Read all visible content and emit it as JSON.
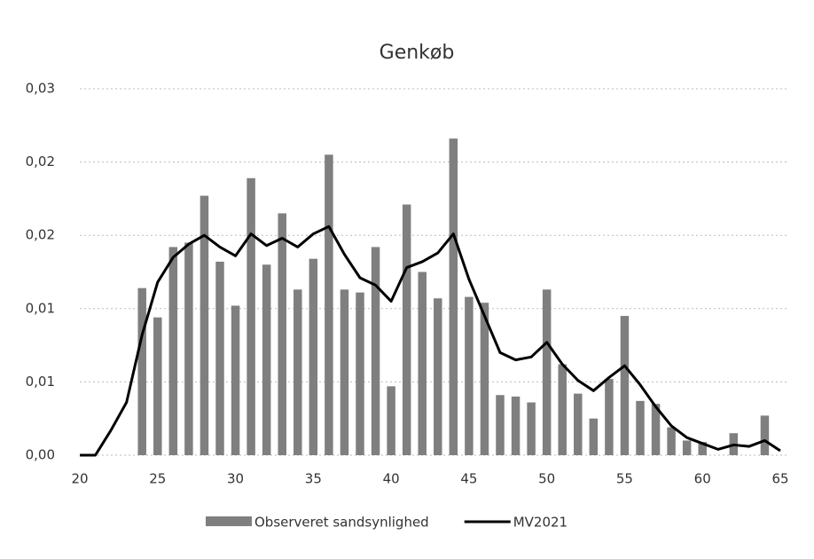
{
  "chart_data": {
    "type": "bar",
    "title": "Genkøb",
    "x": [
      20,
      21,
      22,
      23,
      24,
      25,
      26,
      27,
      28,
      29,
      30,
      31,
      32,
      33,
      34,
      35,
      36,
      37,
      38,
      39,
      40,
      41,
      42,
      43,
      44,
      45,
      46,
      47,
      48,
      49,
      50,
      51,
      52,
      53,
      54,
      55,
      56,
      57,
      58,
      59,
      60,
      61,
      62,
      63,
      64,
      65
    ],
    "series": [
      {
        "name": "Observeret sandsynlighed",
        "type": "bar",
        "color": "#7f7f7f",
        "values": [
          null,
          null,
          null,
          null,
          0.0114,
          0.0094,
          0.0142,
          0.0145,
          0.0177,
          0.0132,
          0.0102,
          0.0189,
          0.013,
          0.0165,
          0.0113,
          0.0134,
          0.0205,
          0.0113,
          0.0111,
          0.0142,
          0.0047,
          0.0171,
          0.0125,
          0.0107,
          0.0216,
          0.0108,
          0.0104,
          0.0041,
          0.004,
          0.0036,
          0.0113,
          0.0062,
          0.0042,
          0.0025,
          0.0052,
          0.0095,
          0.0037,
          0.0035,
          0.0019,
          0.001,
          0.0009,
          null,
          0.0015,
          null,
          0.0027,
          null
        ]
      },
      {
        "name": "MV2021",
        "type": "line",
        "color": "#000000",
        "values": [
          0,
          0,
          0.0017,
          0.0036,
          0.0082,
          0.0118,
          0.0135,
          0.0144,
          0.015,
          0.0142,
          0.0136,
          0.0151,
          0.0143,
          0.0148,
          0.0142,
          0.0151,
          0.0156,
          0.0137,
          0.0121,
          0.0116,
          0.0105,
          0.0128,
          0.0132,
          0.0138,
          0.0151,
          0.012,
          0.0095,
          0.007,
          0.0065,
          0.0067,
          0.0077,
          0.0062,
          0.0051,
          0.0044,
          0.0053,
          0.0061,
          0.0048,
          0.0033,
          0.002,
          0.0012,
          0.0008,
          0.0004,
          0.0007,
          0.0006,
          0.001,
          0.0003
        ]
      }
    ],
    "xlim": [
      20,
      65
    ],
    "xticks": [
      20,
      25,
      30,
      35,
      40,
      45,
      50,
      55,
      60,
      65
    ],
    "ylim": [
      0,
      0.025
    ],
    "yticks": [
      {
        "value": 0,
        "label": "0,00"
      },
      {
        "value": 0.005,
        "label": "0,01"
      },
      {
        "value": 0.01,
        "label": "0,01"
      },
      {
        "value": 0.015,
        "label": "0,02"
      },
      {
        "value": 0.02,
        "label": "0,02"
      },
      {
        "value": 0.025,
        "label": "0,03"
      }
    ],
    "grid": true,
    "legend": "bottom"
  }
}
